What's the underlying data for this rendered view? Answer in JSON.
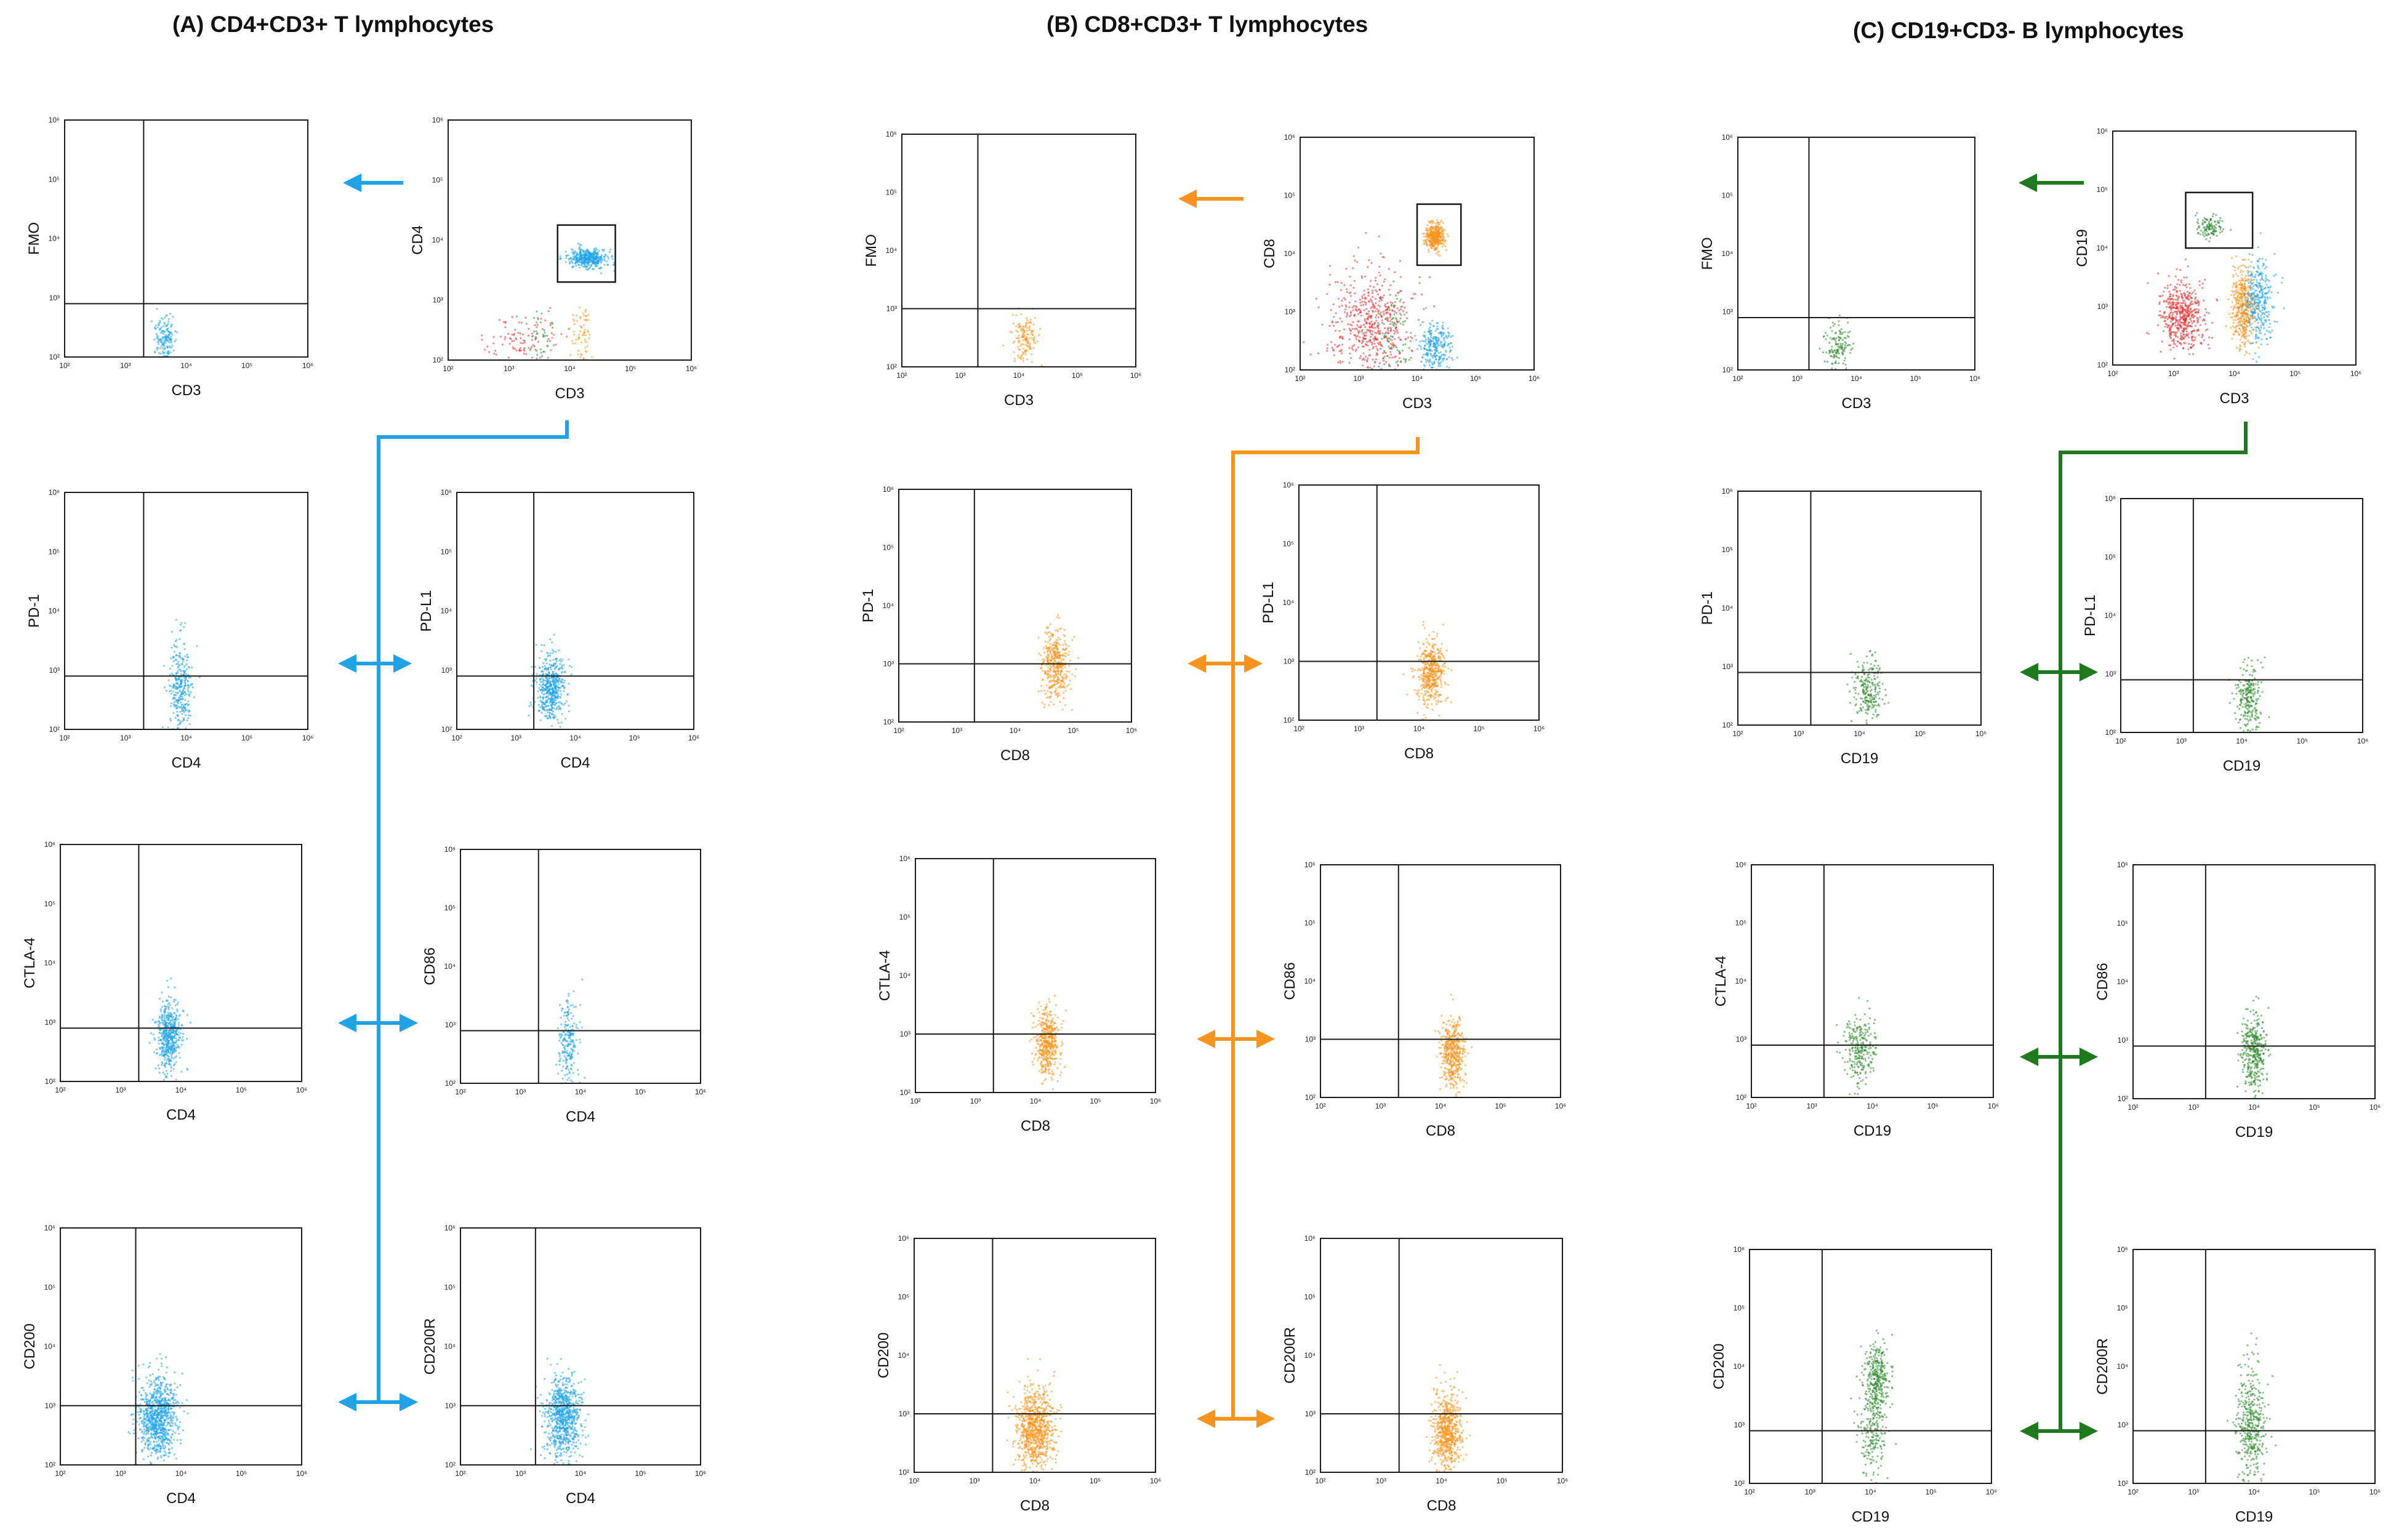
{
  "chart_data": {
    "type": "scatter",
    "subtype": "flow-cytometry-density-plots",
    "axis_scale": "log10",
    "axis_range_log10": [
      2,
      6
    ],
    "tick_labels": [
      "10²",
      "10³",
      "10⁴",
      "10⁵",
      "10⁶"
    ],
    "colors": {
      "cd4": "#1fa2e6",
      "cd8": "#f7941d",
      "cd19": "#2e8b2e",
      "other": "#e03030",
      "frame": "#1a1a1a"
    },
    "panels": [
      {
        "title": "(A)   CD4+CD3+ T lymphocytes",
        "color": "#1fa2e6",
        "plots": [
          {
            "id": "A-fmo",
            "xlabel": "CD3",
            "ylabel": "FMO",
            "gate_x": 3.3,
            "gate_y": 2.9,
            "populations": [
              {
                "color": "cd4",
                "cx": 3.65,
                "cy": 2.3,
                "sx": 0.08,
                "sy": 0.18,
                "n": 160
              }
            ]
          },
          {
            "id": "A-gate",
            "xlabel": "CD3",
            "ylabel": "CD4",
            "gate_box": [
              3.8,
              3.3,
              4.75,
              4.25
            ],
            "populations": [
              {
                "color": "cd4",
                "cx": 4.3,
                "cy": 3.7,
                "sx": 0.16,
                "sy": 0.08,
                "n": 420
              },
              {
                "color": "other",
                "cx": 3.2,
                "cy": 2.3,
                "sx": 0.28,
                "sy": 0.25,
                "n": 110
              },
              {
                "color": "cd19",
                "cx": 3.55,
                "cy": 2.35,
                "sx": 0.15,
                "sy": 0.22,
                "n": 45
              },
              {
                "color": "cd8",
                "cx": 4.2,
                "cy": 2.35,
                "sx": 0.1,
                "sy": 0.3,
                "n": 70
              }
            ]
          },
          {
            "id": "A-pd1",
            "xlabel": "CD4",
            "ylabel": "PD-1",
            "gate_x": 3.3,
            "gate_y": 2.9,
            "populations": [
              {
                "color": "cd4",
                "cx": 3.9,
                "cy": 2.7,
                "sx": 0.1,
                "sy": 0.4,
                "n": 320
              }
            ]
          },
          {
            "id": "A-pdl1",
            "xlabel": "CD4",
            "ylabel": "PD-L1",
            "gate_x": 3.3,
            "gate_y": 2.9,
            "populations": [
              {
                "color": "cd4",
                "cx": 3.6,
                "cy": 2.7,
                "sx": 0.12,
                "sy": 0.3,
                "n": 520
              }
            ]
          },
          {
            "id": "A-ctla4",
            "xlabel": "CD4",
            "ylabel": "CTLA-4",
            "gate_x": 3.3,
            "gate_y": 2.9,
            "populations": [
              {
                "color": "cd4",
                "cx": 3.8,
                "cy": 2.75,
                "sx": 0.1,
                "sy": 0.3,
                "n": 520
              }
            ]
          },
          {
            "id": "A-cd86",
            "xlabel": "CD4",
            "ylabel": "CD86",
            "gate_x": 3.3,
            "gate_y": 2.9,
            "populations": [
              {
                "color": "cd4",
                "cx": 3.8,
                "cy": 2.65,
                "sx": 0.09,
                "sy": 0.4,
                "n": 220
              }
            ]
          },
          {
            "id": "A-cd200",
            "xlabel": "CD4",
            "ylabel": "CD200",
            "gate_x": 3.25,
            "gate_y": 3.0,
            "populations": [
              {
                "color": "cd4",
                "cx": 3.6,
                "cy": 2.8,
                "sx": 0.16,
                "sy": 0.35,
                "n": 900
              }
            ]
          },
          {
            "id": "A-cd200r",
            "xlabel": "CD4",
            "ylabel": "CD200R",
            "gate_x": 3.25,
            "gate_y": 3.0,
            "populations": [
              {
                "color": "cd4",
                "cx": 3.7,
                "cy": 2.8,
                "sx": 0.15,
                "sy": 0.35,
                "n": 800
              }
            ]
          }
        ]
      },
      {
        "title": "(B)   CD8+CD3+ T lymphocytes",
        "color": "#f7941d",
        "plots": [
          {
            "id": "B-fmo",
            "xlabel": "CD3",
            "ylabel": "FMO",
            "gate_x": 3.3,
            "gate_y": 3.0,
            "populations": [
              {
                "color": "cd8",
                "cx": 4.1,
                "cy": 2.5,
                "sx": 0.1,
                "sy": 0.22,
                "n": 150
              }
            ]
          },
          {
            "id": "B-gate",
            "xlabel": "CD3",
            "ylabel": "CD8",
            "gate_box": [
              4.0,
              3.8,
              4.75,
              4.85
            ],
            "populations": [
              {
                "color": "cd8",
                "cx": 4.3,
                "cy": 4.3,
                "sx": 0.08,
                "sy": 0.12,
                "n": 400
              },
              {
                "color": "other",
                "cx": 3.2,
                "cy": 2.8,
                "sx": 0.35,
                "sy": 0.45,
                "n": 550
              },
              {
                "color": "cd4",
                "cx": 4.3,
                "cy": 2.4,
                "sx": 0.14,
                "sy": 0.22,
                "n": 280
              },
              {
                "color": "cd19",
                "cx": 3.6,
                "cy": 2.55,
                "sx": 0.14,
                "sy": 0.3,
                "n": 80
              }
            ]
          },
          {
            "id": "B-pd1",
            "xlabel": "CD8",
            "ylabel": "PD-1",
            "gate_x": 3.3,
            "gate_y": 3.0,
            "populations": [
              {
                "color": "cd8",
                "cx": 4.7,
                "cy": 2.95,
                "sx": 0.12,
                "sy": 0.3,
                "n": 420
              }
            ]
          },
          {
            "id": "B-pdl1",
            "xlabel": "CD8",
            "ylabel": "PD-L1",
            "gate_x": 3.3,
            "gate_y": 3.0,
            "populations": [
              {
                "color": "cd8",
                "cx": 4.2,
                "cy": 2.8,
                "sx": 0.12,
                "sy": 0.28,
                "n": 480
              }
            ]
          },
          {
            "id": "B-ctla4",
            "xlabel": "CD8",
            "ylabel": "CTLA-4",
            "gate_x": 3.3,
            "gate_y": 3.0,
            "populations": [
              {
                "color": "cd8",
                "cx": 4.2,
                "cy": 2.85,
                "sx": 0.1,
                "sy": 0.3,
                "n": 480
              }
            ]
          },
          {
            "id": "B-cd86",
            "xlabel": "CD8",
            "ylabel": "CD86",
            "gate_x": 3.3,
            "gate_y": 3.0,
            "populations": [
              {
                "color": "cd8",
                "cx": 4.2,
                "cy": 2.75,
                "sx": 0.1,
                "sy": 0.3,
                "n": 460
              }
            ]
          },
          {
            "id": "B-cd200",
            "xlabel": "CD8",
            "ylabel": "CD200",
            "gate_x": 3.3,
            "gate_y": 3.0,
            "populations": [
              {
                "color": "cd8",
                "cx": 4.0,
                "cy": 2.75,
                "sx": 0.15,
                "sy": 0.35,
                "n": 850
              }
            ]
          },
          {
            "id": "B-cd200r",
            "xlabel": "CD8",
            "ylabel": "CD200R",
            "gate_x": 3.3,
            "gate_y": 3.0,
            "populations": [
              {
                "color": "cd8",
                "cx": 4.1,
                "cy": 2.7,
                "sx": 0.12,
                "sy": 0.32,
                "n": 650
              }
            ]
          }
        ]
      },
      {
        "title": "(C)   CD19+CD3- B lymphocytes",
        "color": "#2e8b2e",
        "plots": [
          {
            "id": "C-fmo",
            "xlabel": "CD3",
            "ylabel": "FMO",
            "gate_x": 3.2,
            "gate_y": 2.9,
            "populations": [
              {
                "color": "cd19",
                "cx": 3.7,
                "cy": 2.4,
                "sx": 0.1,
                "sy": 0.2,
                "n": 140
              }
            ]
          },
          {
            "id": "C-gate",
            "xlabel": "CD3",
            "ylabel": "CD19",
            "gate_box": [
              3.2,
              4.0,
              4.3,
              4.95
            ],
            "populations": [
              {
                "color": "cd19",
                "cx": 3.6,
                "cy": 4.35,
                "sx": 0.12,
                "sy": 0.08,
                "n": 120
              },
              {
                "color": "other",
                "cx": 3.15,
                "cy": 2.85,
                "sx": 0.18,
                "sy": 0.3,
                "n": 520
              },
              {
                "color": "cd8",
                "cx": 4.15,
                "cy": 3.0,
                "sx": 0.1,
                "sy": 0.35,
                "n": 460
              },
              {
                "color": "cd4",
                "cx": 4.4,
                "cy": 3.1,
                "sx": 0.12,
                "sy": 0.35,
                "n": 320
              }
            ]
          },
          {
            "id": "C-pd1",
            "xlabel": "CD19",
            "ylabel": "PD-1",
            "gate_x": 3.2,
            "gate_y": 2.9,
            "populations": [
              {
                "color": "cd19",
                "cx": 4.15,
                "cy": 2.6,
                "sx": 0.12,
                "sy": 0.3,
                "n": 230
              }
            ]
          },
          {
            "id": "C-pdl1",
            "xlabel": "CD19",
            "ylabel": "PD-L1",
            "gate_x": 3.2,
            "gate_y": 2.9,
            "populations": [
              {
                "color": "cd19",
                "cx": 4.1,
                "cy": 2.6,
                "sx": 0.1,
                "sy": 0.3,
                "n": 240
              }
            ]
          },
          {
            "id": "C-ctla4",
            "xlabel": "CD19",
            "ylabel": "CTLA-4",
            "gate_x": 3.2,
            "gate_y": 2.9,
            "populations": [
              {
                "color": "cd19",
                "cx": 3.8,
                "cy": 2.85,
                "sx": 0.12,
                "sy": 0.3,
                "n": 260
              }
            ]
          },
          {
            "id": "C-cd86",
            "xlabel": "CD19",
            "ylabel": "CD86",
            "gate_x": 3.2,
            "gate_y": 2.9,
            "populations": [
              {
                "color": "cd19",
                "cx": 4.0,
                "cy": 2.75,
                "sx": 0.1,
                "sy": 0.35,
                "n": 380
              }
            ]
          },
          {
            "id": "C-cd200",
            "xlabel": "CD19",
            "ylabel": "CD200",
            "gate_x": 3.2,
            "gate_y": 2.9,
            "populations": [
              {
                "color": "cd19",
                "cx": 4.1,
                "cy": 3.8,
                "sx": 0.1,
                "sy": 0.3,
                "n": 320
              },
              {
                "color": "cd19",
                "cx": 4.05,
                "cy": 2.9,
                "sx": 0.12,
                "sy": 0.4,
                "n": 220
              }
            ]
          },
          {
            "id": "C-cd200r",
            "xlabel": "CD19",
            "ylabel": "CD200R",
            "gate_x": 3.2,
            "gate_y": 2.9,
            "populations": [
              {
                "color": "cd19",
                "cx": 3.95,
                "cy": 3.0,
                "sx": 0.12,
                "sy": 0.5,
                "n": 420
              }
            ]
          }
        ]
      }
    ]
  }
}
